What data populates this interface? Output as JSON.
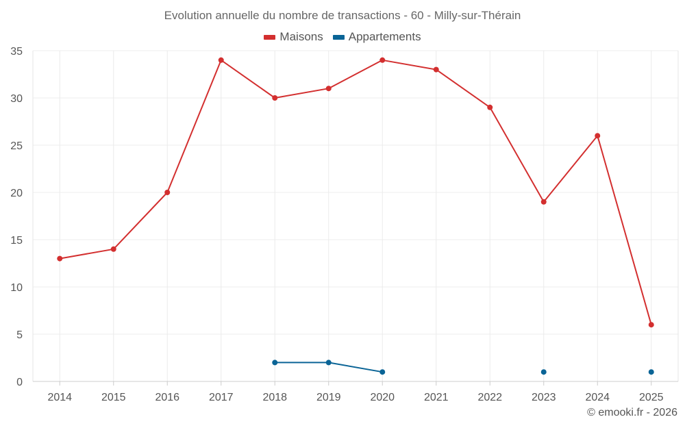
{
  "chart_data": {
    "type": "line",
    "title": "Evolution annuelle du nombre de transactions - 60 - Milly-sur-Thérain",
    "categories": [
      "2014",
      "2015",
      "2016",
      "2017",
      "2018",
      "2019",
      "2020",
      "2021",
      "2022",
      "2023",
      "2024",
      "2025"
    ],
    "ylim": [
      0,
      35
    ],
    "yticks": [
      "0",
      "5",
      "10",
      "15",
      "20",
      "25",
      "30",
      "35"
    ],
    "grid": true,
    "legend_position": "top-center",
    "series": [
      {
        "name": "Maisons",
        "color": "#d32f2f",
        "values": [
          13,
          14,
          20,
          34,
          30,
          31,
          34,
          33,
          29,
          19,
          26,
          6
        ]
      },
      {
        "name": "Appartements",
        "color": "#0a6496",
        "values": [
          null,
          null,
          null,
          null,
          2,
          2,
          1,
          null,
          null,
          1,
          null,
          1
        ]
      }
    ]
  },
  "credit": "© emooki.fr - 2026"
}
